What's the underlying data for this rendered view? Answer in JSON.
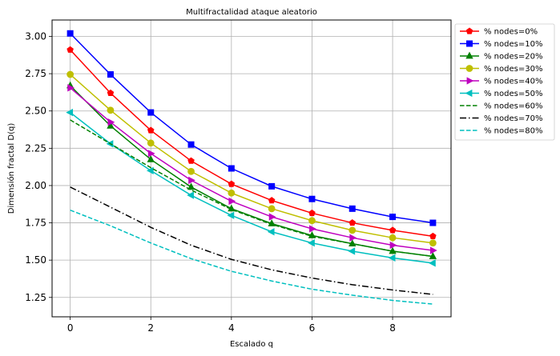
{
  "chart_data": {
    "type": "line",
    "title": "Multifractalidad ataque aleatorio",
    "xlabel": "Escalado q",
    "ylabel": "Dimensión fractal D(q)",
    "xlim": [
      -0.45,
      9.45
    ],
    "ylim": [
      1.12,
      3.11
    ],
    "xticks": [
      0,
      2,
      4,
      6,
      8
    ],
    "yticks": [
      1.25,
      1.5,
      1.75,
      2.0,
      2.25,
      2.5,
      2.75,
      3.0
    ],
    "grid": true,
    "legend_position": "outside-right-top",
    "x": [
      0,
      1,
      2,
      3,
      4,
      5,
      6,
      7,
      8,
      9
    ],
    "series": [
      {
        "name": "% nodes=0%",
        "color": "#ff0000",
        "marker": "pentagon",
        "dash": "solid",
        "values": [
          2.91,
          2.62,
          2.37,
          2.165,
          2.01,
          1.9,
          1.815,
          1.75,
          1.7,
          1.66
        ]
      },
      {
        "name": "% nodes=10%",
        "color": "#0000ff",
        "marker": "square",
        "dash": "solid",
        "values": [
          3.02,
          2.745,
          2.49,
          2.275,
          2.115,
          1.995,
          1.91,
          1.845,
          1.79,
          1.75
        ]
      },
      {
        "name": "% nodes=20%",
        "color": "#008000",
        "marker": "triangle-up",
        "dash": "solid",
        "values": [
          2.67,
          2.4,
          2.175,
          1.99,
          1.845,
          1.745,
          1.665,
          1.61,
          1.56,
          1.525
        ]
      },
      {
        "name": "% nodes=30%",
        "color": "#bfbf00",
        "marker": "circle",
        "dash": "solid",
        "values": [
          2.745,
          2.505,
          2.285,
          2.095,
          1.95,
          1.845,
          1.765,
          1.7,
          1.65,
          1.615
        ]
      },
      {
        "name": "% nodes=40%",
        "color": "#bf00bf",
        "marker": "triangle-right",
        "dash": "solid",
        "values": [
          2.655,
          2.425,
          2.215,
          2.035,
          1.895,
          1.79,
          1.71,
          1.65,
          1.6,
          1.565
        ]
      },
      {
        "name": "% nodes=50%",
        "color": "#00bfbf",
        "marker": "triangle-left",
        "dash": "solid",
        "values": [
          2.49,
          2.28,
          2.1,
          1.935,
          1.8,
          1.69,
          1.615,
          1.56,
          1.515,
          1.48
        ]
      },
      {
        "name": "% nodes=60%",
        "color": "#008000",
        "marker": "none",
        "dash": "dashed",
        "values": [
          2.44,
          2.28,
          2.12,
          1.97,
          1.84,
          1.74,
          1.66,
          1.61,
          1.56,
          1.525
        ]
      },
      {
        "name": "% nodes=70%",
        "color": "#000000",
        "marker": "none",
        "dash": "dashdot",
        "values": [
          1.99,
          1.855,
          1.72,
          1.6,
          1.505,
          1.435,
          1.38,
          1.335,
          1.3,
          1.27
        ]
      },
      {
        "name": "% nodes=80%",
        "color": "#00bfbf",
        "marker": "none",
        "dash": "dashed",
        "values": [
          1.835,
          1.73,
          1.615,
          1.51,
          1.425,
          1.36,
          1.305,
          1.265,
          1.23,
          1.205
        ]
      }
    ]
  }
}
